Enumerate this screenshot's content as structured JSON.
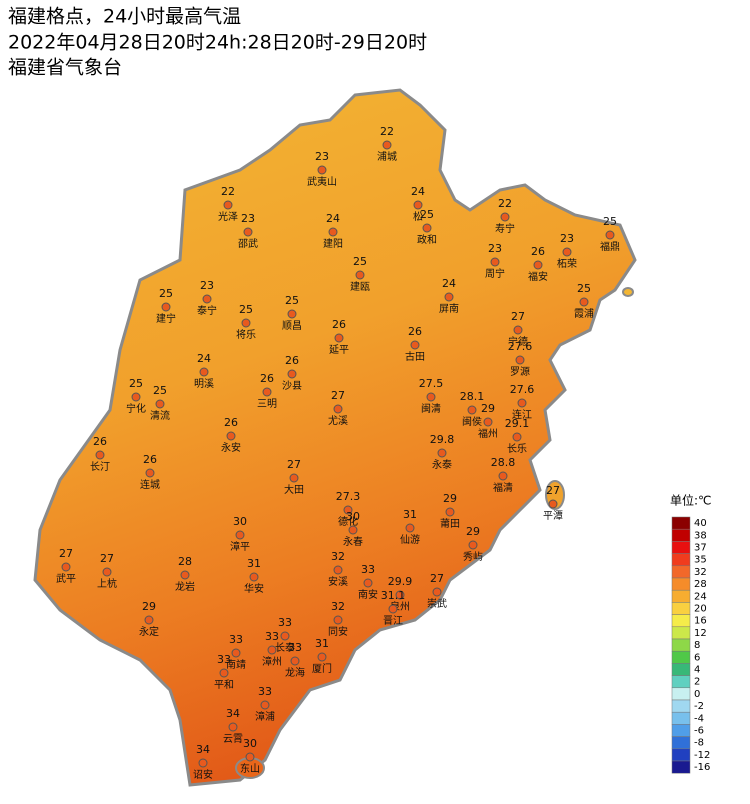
{
  "header": {
    "title": [
      "福建格点，24小时最高气温",
      "2022年04月28日20时24h:28日20时-29日20时",
      "福建省气象台"
    ]
  },
  "stations": [
    {
      "name": "浦城",
      "value": 22
    },
    {
      "name": "武夷山",
      "value": 23
    },
    {
      "name": "松",
      "value": 24
    },
    {
      "name": "政和",
      "value": 25
    },
    {
      "name": "光泽",
      "value": 22
    },
    {
      "name": "邵武",
      "value": 23
    },
    {
      "name": "建阳",
      "value": 24
    },
    {
      "name": "建瓯",
      "value": 25
    },
    {
      "name": "寿宁",
      "value": 22
    },
    {
      "name": "福鼎",
      "value": 25
    },
    {
      "name": "柘荣",
      "value": 23
    },
    {
      "name": "福安",
      "value": 26
    },
    {
      "name": "周宁",
      "value": 23
    },
    {
      "name": "屏南",
      "value": 24
    },
    {
      "name": "霞浦",
      "value": 25
    },
    {
      "name": "建宁",
      "value": 25
    },
    {
      "name": "泰宁",
      "value": 23
    },
    {
      "name": "顺昌",
      "value": 25
    },
    {
      "name": "将乐",
      "value": 25
    },
    {
      "name": "延平",
      "value": 26
    },
    {
      "name": "古田",
      "value": 26
    },
    {
      "name": "宁德",
      "value": 27
    },
    {
      "name": "罗源",
      "value": 27.6
    },
    {
      "name": "明溪",
      "value": 24
    },
    {
      "name": "沙县",
      "value": 26
    },
    {
      "name": "三明",
      "value": 26
    },
    {
      "name": "宁化",
      "value": 25
    },
    {
      "name": "清流",
      "value": 25
    },
    {
      "name": "尤溪",
      "value": 27
    },
    {
      "name": "闽清",
      "value": 27.5
    },
    {
      "name": "闽侯",
      "value": 28.1
    },
    {
      "name": "福州",
      "value": 29
    },
    {
      "name": "连江",
      "value": 27.6
    },
    {
      "name": "长乐",
      "value": 29.1
    },
    {
      "name": "长汀",
      "value": 26
    },
    {
      "name": "连城",
      "value": 26
    },
    {
      "name": "永安",
      "value": 26
    },
    {
      "name": "永泰",
      "value": 29.8
    },
    {
      "name": "大田",
      "value": 27
    },
    {
      "name": "福清",
      "value": 28.8
    },
    {
      "name": "平潭",
      "value": 27
    },
    {
      "name": "德化",
      "value": 27.3
    },
    {
      "name": "永春",
      "value": 30
    },
    {
      "name": "仙游",
      "value": 31
    },
    {
      "name": "莆田",
      "value": 29
    },
    {
      "name": "漳平",
      "value": 30
    },
    {
      "name": "秀屿",
      "value": 29
    },
    {
      "name": "武平",
      "value": 27
    },
    {
      "name": "上杭",
      "value": 27
    },
    {
      "name": "龙岩",
      "value": 28
    },
    {
      "name": "华安",
      "value": 31
    },
    {
      "name": "安溪",
      "value": 32
    },
    {
      "name": "南安",
      "value": 33
    },
    {
      "name": "泉州",
      "value": 29.9
    },
    {
      "name": "晋江",
      "value": 31.1
    },
    {
      "name": "崇武",
      "value": 27
    },
    {
      "name": "永定",
      "value": 29
    },
    {
      "name": "同安",
      "value": 32
    },
    {
      "name": "长泰",
      "value": 33
    },
    {
      "name": "南靖",
      "value": 33
    },
    {
      "name": "漳州",
      "value": 33
    },
    {
      "name": "龙海",
      "value": 33
    },
    {
      "name": "厦门",
      "value": 31
    },
    {
      "name": "平和",
      "value": 33
    },
    {
      "name": "漳浦",
      "value": 33
    },
    {
      "name": "云霄",
      "value": 34
    },
    {
      "name": "诏安",
      "value": 34
    },
    {
      "name": "东山",
      "value": 30
    }
  ],
  "legend": {
    "title": "单位:℃",
    "levels": [
      {
        "value": 40,
        "color": "#8b0000"
      },
      {
        "value": 38,
        "color": "#c00000"
      },
      {
        "value": 37,
        "color": "#e81010"
      },
      {
        "value": 35,
        "color": "#f03c1e"
      },
      {
        "value": 32,
        "color": "#f2682a"
      },
      {
        "value": 28,
        "color": "#f58c2a"
      },
      {
        "value": 24,
        "color": "#f7ad30"
      },
      {
        "value": 20,
        "color": "#f9d040"
      },
      {
        "value": 16,
        "color": "#f5ec4a"
      },
      {
        "value": 12,
        "color": "#cce84a"
      },
      {
        "value": 8,
        "color": "#8ed848"
      },
      {
        "value": 6,
        "color": "#50c848"
      },
      {
        "value": 4,
        "color": "#38b878"
      },
      {
        "value": 2,
        "color": "#60d0c0"
      },
      {
        "value": 0,
        "color": "#c8f0f0"
      },
      {
        "value": -2,
        "color": "#a0d8f0"
      },
      {
        "value": -4,
        "color": "#78c0ec"
      },
      {
        "value": -6,
        "color": "#509ee8"
      },
      {
        "value": -8,
        "color": "#3070d8"
      },
      {
        "value": -12,
        "color": "#2040c0"
      },
      {
        "value": -16,
        "color": "#1a1a90"
      }
    ]
  }
}
